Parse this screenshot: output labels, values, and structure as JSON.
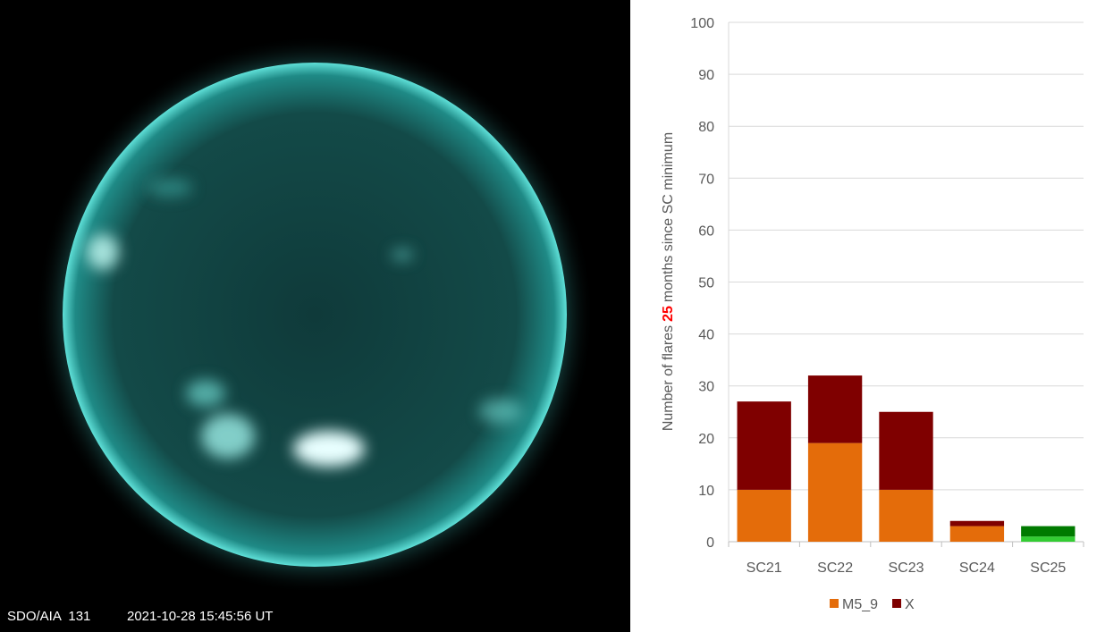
{
  "image": {
    "caption": "SDO/AIA  131",
    "timestamp": "2021-10-28 15:45:56 UT"
  },
  "chart_data": {
    "type": "bar",
    "stacked": true,
    "y_label": [
      {
        "text": "Number of flares"
      },
      {
        "text": "25",
        "color": "#ff0000"
      },
      {
        "text": "months since SC minimum"
      }
    ],
    "categories": [
      "SC21",
      "SC22",
      "SC23",
      "SC24",
      "SC25"
    ],
    "series": [
      {
        "name": "M5_9",
        "color": "#e46c0a",
        "values": [
          10,
          19,
          10,
          3,
          1
        ],
        "point_colors": [
          "#e46c0a",
          "#e46c0a",
          "#e46c0a",
          "#e46c0a",
          "#33cc33"
        ]
      },
      {
        "name": "X",
        "color": "#7f0000",
        "values": [
          17,
          13,
          15,
          1,
          2
        ],
        "point_colors": [
          "#7f0000",
          "#7f0000",
          "#7f0000",
          "#7f0000",
          "#007a00"
        ]
      }
    ],
    "ylim": [
      0,
      100
    ],
    "yticks": [
      0,
      10,
      20,
      30,
      40,
      50,
      60,
      70,
      80,
      90,
      100
    ],
    "grid": true,
    "legend": "bottom"
  }
}
